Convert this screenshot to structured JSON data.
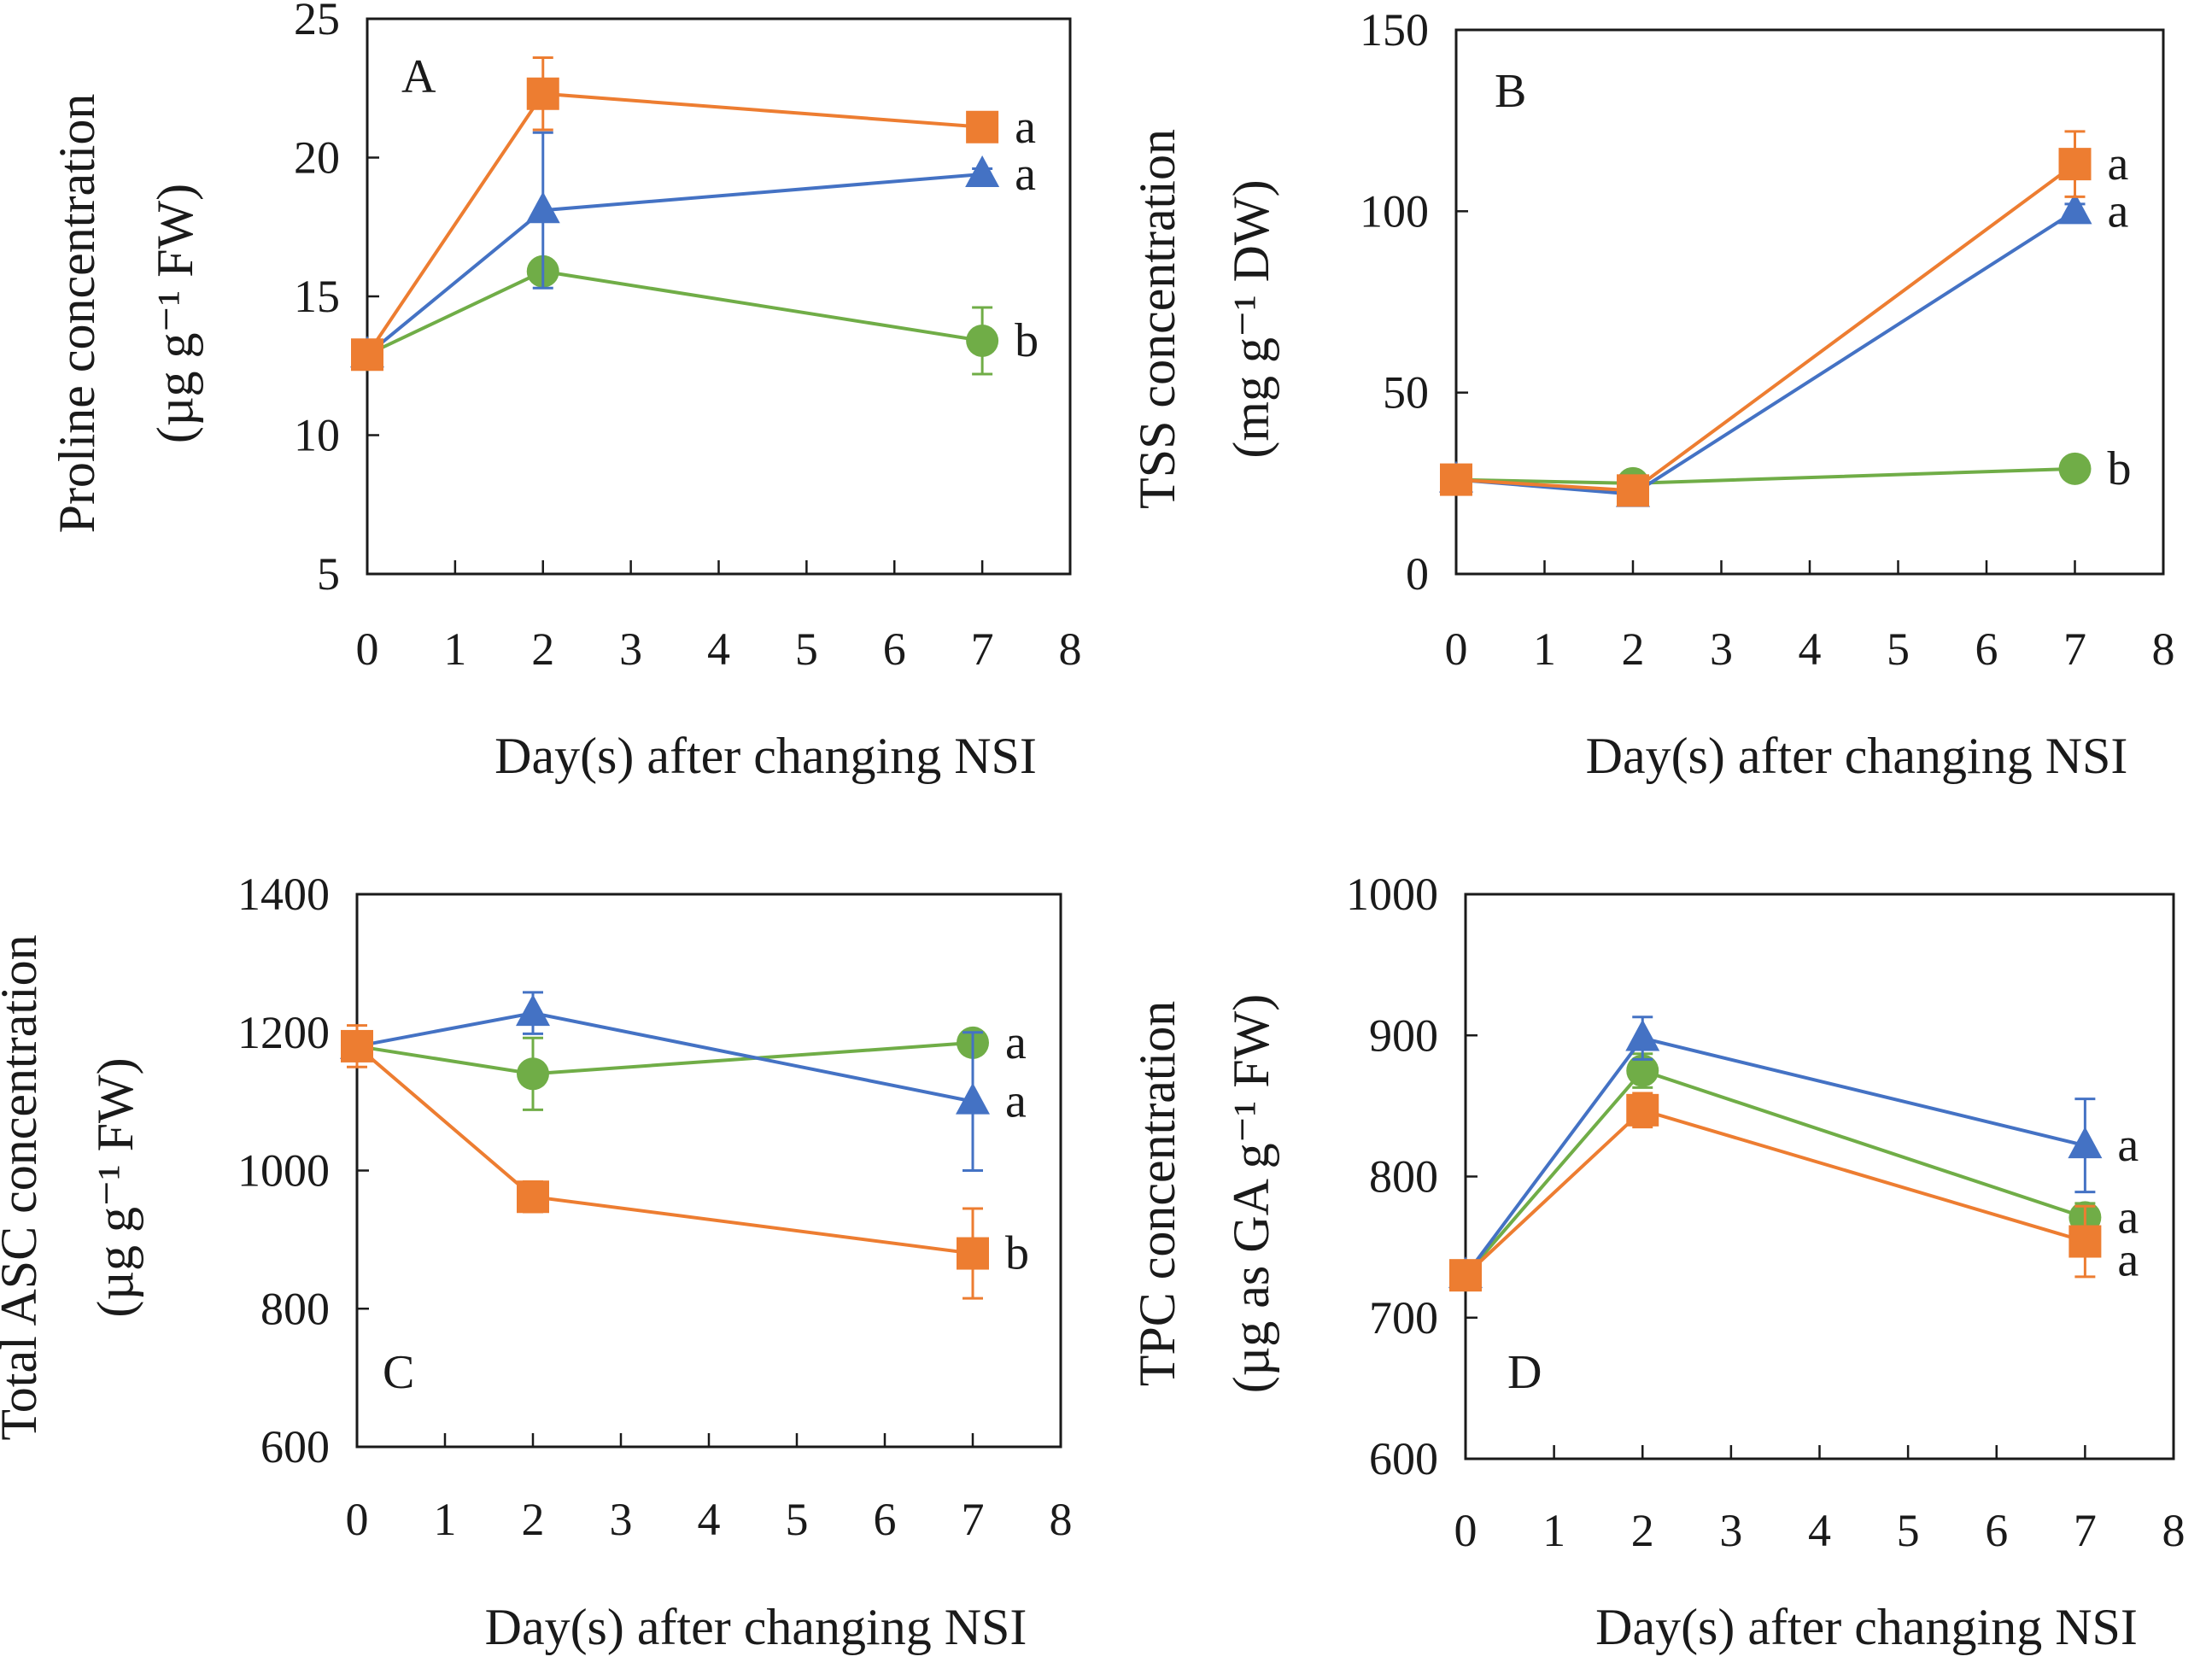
{
  "colors": {
    "green": "#70ad47",
    "blue": "#4472c4",
    "orange": "#ed7d31",
    "axis": "#1a1a1a"
  },
  "chart_data": [
    {
      "type": "line",
      "panel": "A",
      "ylabel_line1": "Proline concentration",
      "ylabel_line2": "(µg g⁻¹ FW)",
      "xlabel": "Day(s) after changing NSI",
      "xlim": [
        0,
        8
      ],
      "ylim": [
        5,
        25
      ],
      "xticks": [
        "0",
        "1",
        "2",
        "3",
        "4",
        "5",
        "6",
        "7",
        "8"
      ],
      "yticks": [
        "5",
        "10",
        "15",
        "20",
        "25"
      ],
      "x": [
        0,
        2,
        7
      ],
      "series": [
        {
          "name": "green",
          "marker": "circle",
          "values": [
            12.9,
            15.9,
            13.4
          ],
          "errors": [
            0,
            0.3,
            1.2
          ],
          "letter": "b"
        },
        {
          "name": "blue",
          "marker": "triangle",
          "values": [
            12.9,
            18.1,
            19.4
          ],
          "errors": [
            0,
            2.8,
            0.2
          ],
          "letter": "a"
        },
        {
          "name": "orange",
          "marker": "square",
          "values": [
            12.9,
            22.3,
            21.1
          ],
          "errors": [
            0,
            1.3,
            0.2
          ],
          "letter": "a"
        }
      ]
    },
    {
      "type": "line",
      "panel": "B",
      "ylabel_line1": "TSS concentration",
      "ylabel_line2": "(mg g⁻¹ DW)",
      "xlabel": "Day(s) after changing NSI",
      "xlim": [
        0,
        8
      ],
      "ylim": [
        0,
        150
      ],
      "xticks": [
        "0",
        "1",
        "2",
        "3",
        "4",
        "5",
        "6",
        "7",
        "8"
      ],
      "yticks": [
        "0",
        "50",
        "100",
        "150"
      ],
      "x": [
        0,
        2,
        7
      ],
      "series": [
        {
          "name": "green",
          "marker": "circle",
          "values": [
            26,
            25,
            29
          ],
          "errors": [
            0,
            1,
            0.5
          ],
          "letter": "b"
        },
        {
          "name": "blue",
          "marker": "triangle",
          "values": [
            26,
            22,
            100
          ],
          "errors": [
            0,
            2,
            2
          ],
          "letter": "a"
        },
        {
          "name": "orange",
          "marker": "square",
          "values": [
            26,
            23,
            113
          ],
          "errors": [
            0,
            2,
            9
          ],
          "letter": "a"
        }
      ]
    },
    {
      "type": "line",
      "panel": "C",
      "ylabel_line1": "Total ASC concentration",
      "ylabel_line2": "(µg g⁻¹ FW)",
      "xlabel": "Day(s) after changing NSI",
      "xlim": [
        0,
        8
      ],
      "ylim": [
        600,
        1400
      ],
      "xticks": [
        "0",
        "1",
        "2",
        "3",
        "4",
        "5",
        "6",
        "7",
        "8"
      ],
      "yticks": [
        "600",
        "800",
        "1000",
        "1200",
        "1400"
      ],
      "x": [
        0,
        2,
        7
      ],
      "series": [
        {
          "name": "green",
          "marker": "circle",
          "values": [
            1180,
            1140,
            1185
          ],
          "errors": [
            0,
            52,
            15
          ],
          "letter": "a"
        },
        {
          "name": "blue",
          "marker": "triangle",
          "values": [
            1180,
            1228,
            1100
          ],
          "errors": [
            0,
            30,
            100
          ],
          "letter": "a"
        },
        {
          "name": "orange",
          "marker": "square",
          "values": [
            1180,
            962,
            880
          ],
          "errors": [
            30,
            22,
            65
          ],
          "letter": "b"
        }
      ]
    },
    {
      "type": "line",
      "panel": "D",
      "ylabel_line1": "TPC concentration",
      "ylabel_line2": "(µg as GA g⁻¹ FW)",
      "xlabel": "Day(s) after changing NSI",
      "xlim": [
        0,
        8
      ],
      "ylim": [
        600,
        1000
      ],
      "xticks": [
        "0",
        "1",
        "2",
        "3",
        "4",
        "5",
        "6",
        "7",
        "8"
      ],
      "yticks": [
        "600",
        "700",
        "800",
        "900",
        "1000"
      ],
      "x": [
        0,
        2,
        7
      ],
      "series": [
        {
          "name": "green",
          "marker": "circle",
          "values": [
            730,
            875,
            771
          ],
          "errors": [
            0,
            12,
            10
          ],
          "letter": "a"
        },
        {
          "name": "blue",
          "marker": "triangle",
          "values": [
            730,
            898,
            822
          ],
          "errors": [
            0,
            15,
            33
          ],
          "letter": "a"
        },
        {
          "name": "orange",
          "marker": "square",
          "values": [
            730,
            847,
            754
          ],
          "errors": [
            5,
            12,
            25
          ],
          "letter": "a"
        }
      ]
    }
  ]
}
